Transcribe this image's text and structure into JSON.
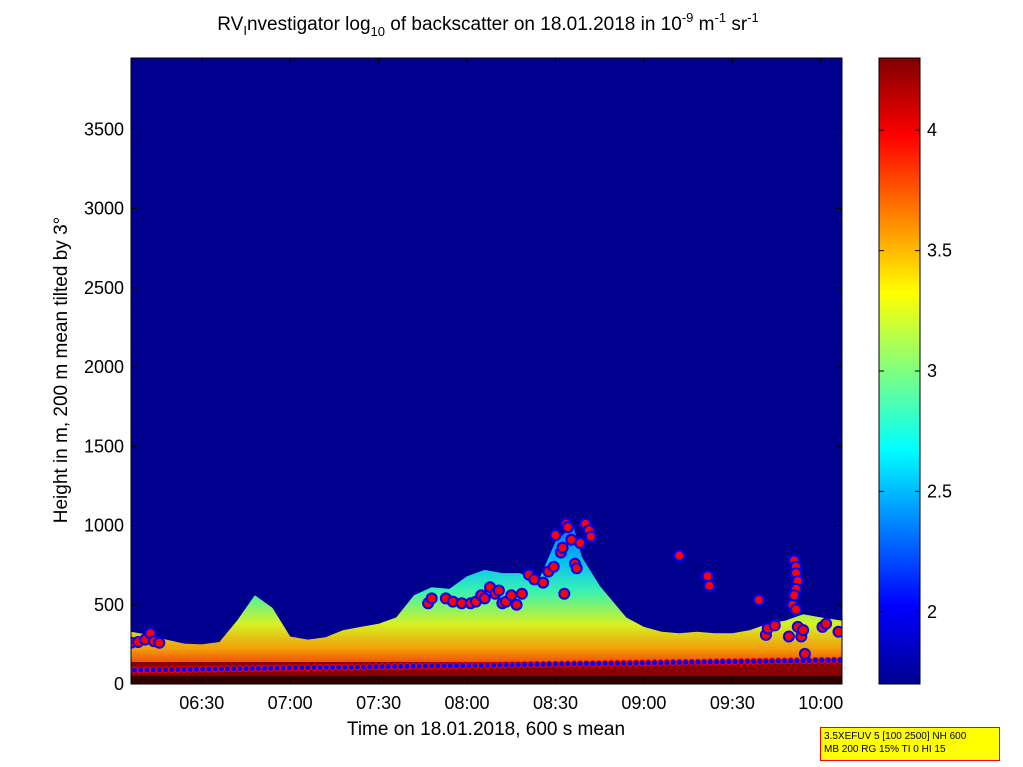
{
  "chart_data": {
    "type": "heatmap",
    "title": {
      "prefix": "RV",
      "prefix_sub": "I",
      "main": "nvestigator log",
      "main_sub": "10",
      "rest": " of backscatter on 18.01.2018 in 10",
      "sup1": "-9",
      "mid": " m",
      "sup2": "-1",
      "end": " sr",
      "sup3": "-1"
    },
    "xlabel": "Time on 18.01.2018, 600 s mean",
    "ylabel": "Height in m, 200 m mean tilted by 3°",
    "x_ticks": [
      "06:30",
      "07:00",
      "07:30",
      "08:00",
      "08:30",
      "09:00",
      "09:30",
      "10:00"
    ],
    "y_ticks": [
      "0",
      "500",
      "1000",
      "1500",
      "2000",
      "2500",
      "3000",
      "3500"
    ],
    "xlim_hours": [
      6.1,
      10.12
    ],
    "ylim": [
      0,
      3950
    ],
    "colorbar": {
      "ticks": [
        "2",
        "2.5",
        "3",
        "3.5",
        "4"
      ],
      "range": [
        1.7,
        4.3
      ],
      "colormap": "jet"
    },
    "colors": {
      "background_low": "#00008f",
      "cloud_marker_face": "#ff0000",
      "cloud_marker_edge": "#0000ff"
    },
    "layer_top_profile": [
      {
        "t": 6.1,
        "h": 330
      },
      {
        "t": 6.2,
        "h": 310
      },
      {
        "t": 6.3,
        "h": 280
      },
      {
        "t": 6.4,
        "h": 255
      },
      {
        "t": 6.5,
        "h": 250
      },
      {
        "t": 6.6,
        "h": 265
      },
      {
        "t": 6.7,
        "h": 400
      },
      {
        "t": 6.8,
        "h": 560
      },
      {
        "t": 6.9,
        "h": 480
      },
      {
        "t": 7.0,
        "h": 300
      },
      {
        "t": 7.1,
        "h": 280
      },
      {
        "t": 7.2,
        "h": 295
      },
      {
        "t": 7.3,
        "h": 340
      },
      {
        "t": 7.4,
        "h": 360
      },
      {
        "t": 7.5,
        "h": 380
      },
      {
        "t": 7.6,
        "h": 420
      },
      {
        "t": 7.7,
        "h": 560
      },
      {
        "t": 7.8,
        "h": 610
      },
      {
        "t": 7.9,
        "h": 600
      },
      {
        "t": 8.0,
        "h": 680
      },
      {
        "t": 8.1,
        "h": 720
      },
      {
        "t": 8.2,
        "h": 700
      },
      {
        "t": 8.3,
        "h": 700
      },
      {
        "t": 8.4,
        "h": 640
      },
      {
        "t": 8.5,
        "h": 900
      },
      {
        "t": 8.6,
        "h": 1000
      },
      {
        "t": 8.65,
        "h": 800
      },
      {
        "t": 8.75,
        "h": 620
      },
      {
        "t": 8.9,
        "h": 420
      },
      {
        "t": 9.0,
        "h": 360
      },
      {
        "t": 9.1,
        "h": 330
      },
      {
        "t": 9.2,
        "h": 320
      },
      {
        "t": 9.3,
        "h": 330
      },
      {
        "t": 9.4,
        "h": 320
      },
      {
        "t": 9.5,
        "h": 320
      },
      {
        "t": 9.6,
        "h": 340
      },
      {
        "t": 9.7,
        "h": 380
      },
      {
        "t": 9.8,
        "h": 400
      },
      {
        "t": 9.9,
        "h": 440
      },
      {
        "t": 10.0,
        "h": 420
      },
      {
        "t": 10.12,
        "h": 400
      }
    ],
    "cloud_base_points": [
      {
        "t": 6.1,
        "h": 260
      },
      {
        "t": 6.14,
        "h": 265
      },
      {
        "t": 6.18,
        "h": 280
      },
      {
        "t": 6.21,
        "h": 320
      },
      {
        "t": 6.23,
        "h": 270
      },
      {
        "t": 6.26,
        "h": 260
      },
      {
        "t": 7.78,
        "h": 510
      },
      {
        "t": 7.8,
        "h": 540
      },
      {
        "t": 7.88,
        "h": 540
      },
      {
        "t": 7.92,
        "h": 520
      },
      {
        "t": 7.97,
        "h": 510
      },
      {
        "t": 8.02,
        "h": 510
      },
      {
        "t": 8.05,
        "h": 520
      },
      {
        "t": 8.08,
        "h": 560
      },
      {
        "t": 8.1,
        "h": 540
      },
      {
        "t": 8.13,
        "h": 610
      },
      {
        "t": 8.16,
        "h": 570
      },
      {
        "t": 8.18,
        "h": 590
      },
      {
        "t": 8.2,
        "h": 510
      },
      {
        "t": 8.22,
        "h": 520
      },
      {
        "t": 8.25,
        "h": 560
      },
      {
        "t": 8.28,
        "h": 500
      },
      {
        "t": 8.31,
        "h": 570
      },
      {
        "t": 8.35,
        "h": 690
      },
      {
        "t": 8.38,
        "h": 660
      },
      {
        "t": 8.43,
        "h": 640
      },
      {
        "t": 8.46,
        "h": 710
      },
      {
        "t": 8.49,
        "h": 740
      },
      {
        "t": 8.5,
        "h": 940
      },
      {
        "t": 8.53,
        "h": 830
      },
      {
        "t": 8.54,
        "h": 860
      },
      {
        "t": 8.56,
        "h": 1010
      },
      {
        "t": 8.57,
        "h": 990
      },
      {
        "t": 8.59,
        "h": 910
      },
      {
        "t": 8.61,
        "h": 760
      },
      {
        "t": 8.62,
        "h": 730
      },
      {
        "t": 8.64,
        "h": 890
      },
      {
        "t": 8.67,
        "h": 1010
      },
      {
        "t": 8.69,
        "h": 970
      },
      {
        "t": 8.7,
        "h": 930
      },
      {
        "t": 8.55,
        "h": 570
      },
      {
        "t": 9.2,
        "h": 810
      },
      {
        "t": 9.36,
        "h": 680
      },
      {
        "t": 9.37,
        "h": 620
      },
      {
        "t": 9.65,
        "h": 530
      },
      {
        "t": 9.69,
        "h": 310
      },
      {
        "t": 9.7,
        "h": 350
      },
      {
        "t": 9.74,
        "h": 370
      },
      {
        "t": 9.82,
        "h": 300
      },
      {
        "t": 9.84,
        "h": 500
      },
      {
        "t": 9.85,
        "h": 780
      },
      {
        "t": 9.86,
        "h": 740
      },
      {
        "t": 9.86,
        "h": 700
      },
      {
        "t": 9.87,
        "h": 650
      },
      {
        "t": 9.86,
        "h": 600
      },
      {
        "t": 9.85,
        "h": 560
      },
      {
        "t": 9.86,
        "h": 470
      },
      {
        "t": 9.87,
        "h": 360
      },
      {
        "t": 9.89,
        "h": 300
      },
      {
        "t": 9.9,
        "h": 340
      },
      {
        "t": 9.91,
        "h": 190
      },
      {
        "t": 10.01,
        "h": 360
      },
      {
        "t": 10.03,
        "h": 380
      },
      {
        "t": 10.1,
        "h": 330
      }
    ],
    "low_base_line_h": 100
  },
  "info_box": {
    "line1": "3.5XEFUV 5 [100 2500] NH 600",
    "line2": "MB 200 RG 15% TI 0 HI 15"
  }
}
